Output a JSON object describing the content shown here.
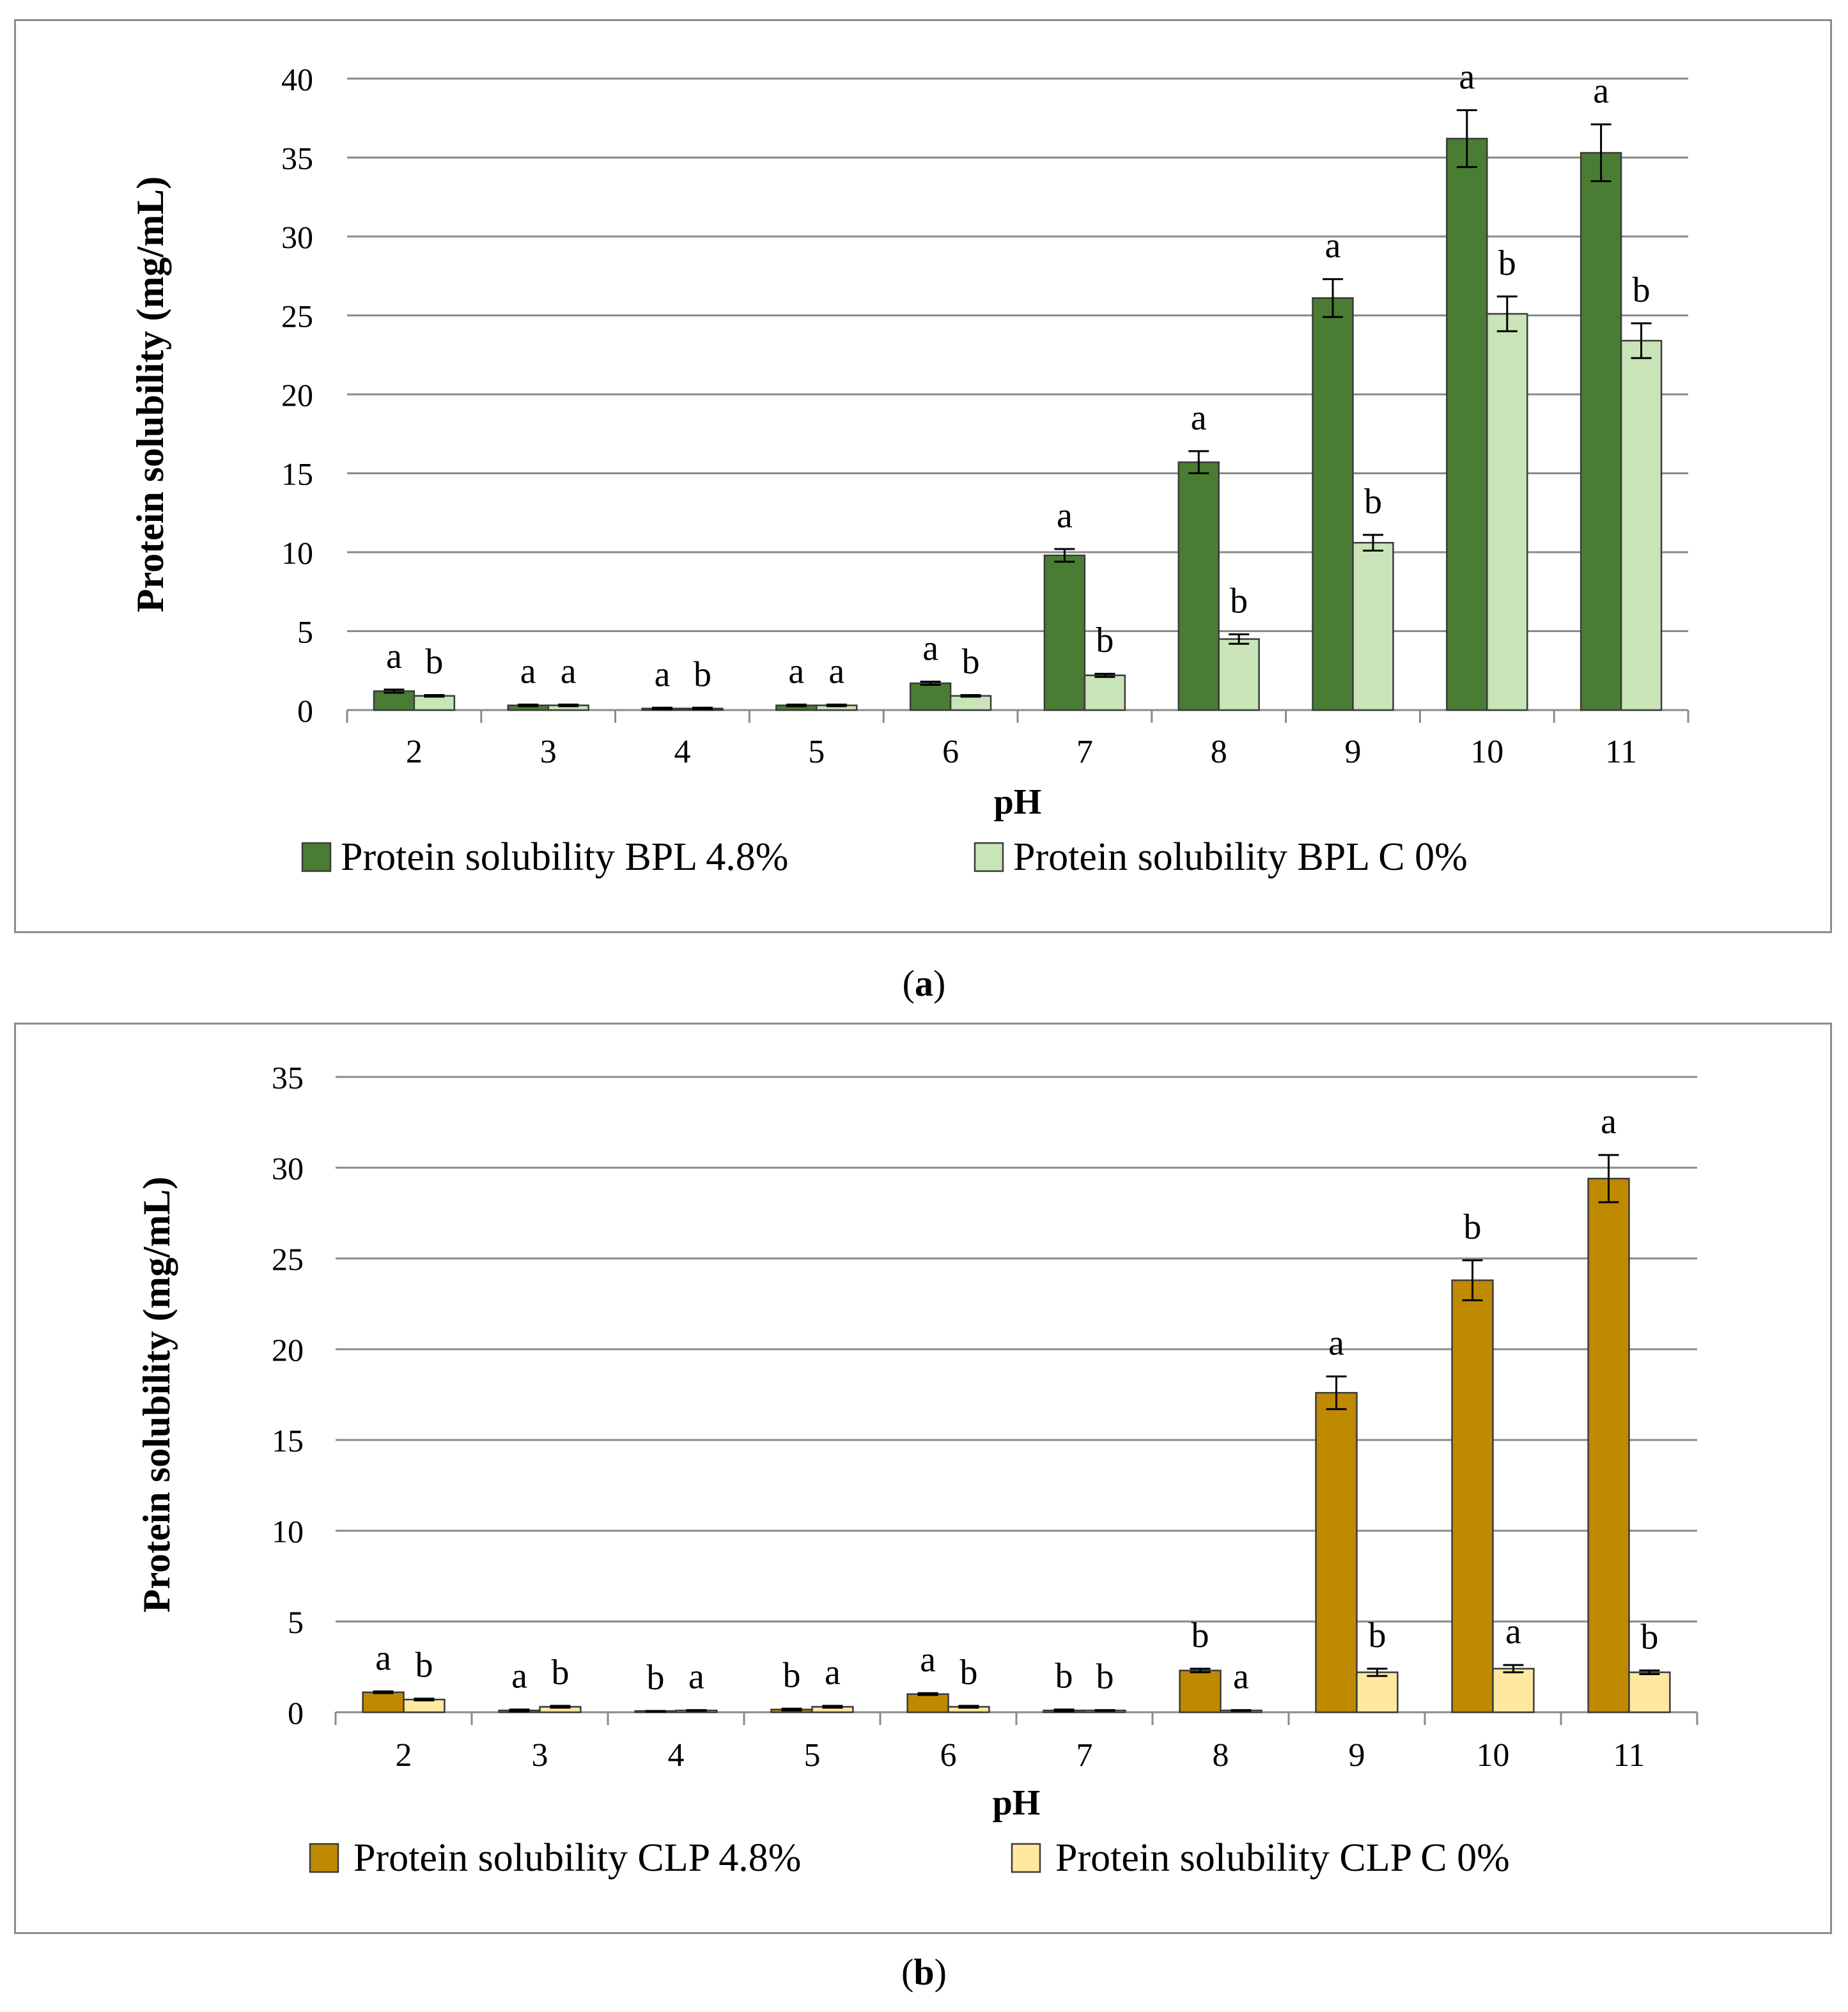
{
  "chart_data": [
    {
      "type": "bar",
      "panel": "a",
      "title": "",
      "xlabel": "pH",
      "ylabel": "Protein solubility (mg/mL)",
      "ylim": [
        0,
        40
      ],
      "yticks": [
        "0",
        "5",
        "10",
        "15",
        "20",
        "25",
        "30",
        "35",
        "40"
      ],
      "categories": [
        "2",
        "3",
        "4",
        "5",
        "6",
        "7",
        "8",
        "9",
        "10",
        "11"
      ],
      "grid": true,
      "legend_position": "bottom",
      "series": [
        {
          "name": "Protein solubility BPL 4.8%",
          "color": "#4a7d33",
          "values": [
            1.2,
            0.3,
            0.1,
            0.3,
            1.7,
            9.8,
            15.7,
            26.1,
            36.2,
            35.3
          ],
          "errors": [
            0.1,
            0.05,
            0.05,
            0.05,
            0.1,
            0.4,
            0.7,
            1.2,
            1.8,
            1.8
          ],
          "letters": [
            "a",
            "a",
            "a",
            "a",
            "a",
            "a",
            "a",
            "a",
            "a",
            "a"
          ]
        },
        {
          "name": "Protein solubility BPL C 0%",
          "color": "#c9e4b8",
          "values": [
            0.9,
            0.3,
            0.1,
            0.3,
            0.9,
            2.2,
            4.5,
            10.6,
            25.1,
            23.4
          ],
          "errors": [
            0.05,
            0.05,
            0.05,
            0.05,
            0.05,
            0.1,
            0.3,
            0.5,
            1.1,
            1.1
          ],
          "letters": [
            "b",
            "a",
            "b",
            "a",
            "b",
            "b",
            "b",
            "b",
            "b",
            "b"
          ]
        }
      ]
    },
    {
      "type": "bar",
      "panel": "b",
      "title": "",
      "xlabel": "pH",
      "ylabel": "Protein solubility (mg/mL)",
      "ylim": [
        0,
        35
      ],
      "yticks": [
        "0",
        "5",
        "10",
        "15",
        "20",
        "25",
        "30",
        "35"
      ],
      "categories": [
        "2",
        "3",
        "4",
        "5",
        "6",
        "7",
        "8",
        "9",
        "10",
        "11"
      ],
      "grid": true,
      "legend_position": "bottom",
      "series": [
        {
          "name": "Protein solubility CLP 4.8%",
          "color": "#bf8a00",
          "values": [
            1.1,
            0.1,
            0.05,
            0.15,
            1.0,
            0.1,
            2.3,
            17.6,
            23.8,
            29.4
          ],
          "errors": [
            0.05,
            0.05,
            0.02,
            0.05,
            0.05,
            0.05,
            0.1,
            0.9,
            1.1,
            1.3
          ],
          "letters": [
            "a",
            "a",
            "b",
            "b",
            "a",
            "b",
            "b",
            "a",
            "b",
            "a"
          ]
        },
        {
          "name": "Protein solubility CLP C 0%",
          "color": "#ffe8a0",
          "values": [
            0.7,
            0.3,
            0.1,
            0.3,
            0.3,
            0.1,
            0.1,
            2.2,
            2.4,
            2.2
          ],
          "errors": [
            0.05,
            0.05,
            0.02,
            0.05,
            0.05,
            0.02,
            0.02,
            0.2,
            0.2,
            0.1
          ],
          "letters": [
            "b",
            "b",
            "a",
            "a",
            "b",
            "b",
            "a",
            "b",
            "a",
            "b"
          ]
        }
      ]
    }
  ],
  "captions": {
    "a": {
      "open": "(",
      "letter": "a",
      "close": ")"
    },
    "b": {
      "open": "(",
      "letter": "b",
      "close": ")"
    }
  }
}
